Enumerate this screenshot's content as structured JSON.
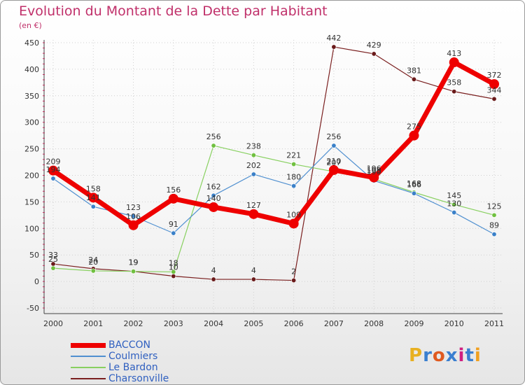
{
  "title": "Evolution du Montant de la Dette par Habitant",
  "unit": "(en €)",
  "logo": {
    "text": "Proxiti",
    "colors": [
      "#e8b020",
      "#3a7fd0",
      "#e05a20",
      "#3a7fd0",
      "#d02080",
      "#3a7fd0",
      "#f0a020"
    ]
  },
  "chart_data": {
    "type": "line",
    "title": "Evolution du Montant de la Dette par Habitant",
    "subtitle": "(en €)",
    "xlabel": "",
    "ylabel": "",
    "x": [
      "2000",
      "2001",
      "2002",
      "2003",
      "2004",
      "2005",
      "2006",
      "2007",
      "2008",
      "2009",
      "2010",
      "2011"
    ],
    "ylim": [
      -50,
      450
    ],
    "yticks": [
      -50,
      0,
      50,
      100,
      150,
      200,
      250,
      300,
      350,
      400,
      450
    ],
    "grid": "dotted",
    "legend_position": "bottom-left",
    "series": [
      {
        "name": "Charsonville",
        "color": "#7a1f1f",
        "width": 1.2,
        "marker": "#6a1a1a",
        "markerR": 3.2,
        "values": [
          33,
          24,
          19,
          10,
          4,
          4,
          2,
          442,
          429,
          381,
          358,
          344
        ],
        "labels": [
          "33",
          "24",
          "19",
          "10",
          "4",
          "4",
          "2",
          "442",
          "429",
          "381",
          "358",
          "344"
        ]
      },
      {
        "name": "Le Bardon",
        "color": "#88d060",
        "width": 1.2,
        "marker": "#70c040",
        "markerR": 3.2,
        "values": [
          25,
          20,
          19,
          18,
          256,
          238,
          221,
          207,
          193,
          168,
          145,
          125
        ],
        "labels": [
          "25",
          "20",
          "19",
          "18",
          "256",
          "238",
          "221",
          "207",
          "193",
          "168",
          "145",
          "125"
        ]
      },
      {
        "name": "Coulmiers",
        "color": "#5090d0",
        "width": 1.2,
        "marker": "#3a80c8",
        "markerR": 3.2,
        "values": [
          194,
          141,
          123,
          91,
          162,
          202,
          180,
          256,
          190,
          166,
          130,
          89
        ],
        "labels": [
          "194",
          "141",
          "123",
          "91",
          "162",
          "202",
          "180",
          "256",
          "190",
          "166",
          "130",
          "89"
        ]
      },
      {
        "name": "BACCON",
        "color": "#ee0000",
        "width": 7,
        "marker": "#ee0000",
        "markerR": 7,
        "values": [
          209,
          158,
          106,
          156,
          140,
          127,
          109,
          210,
          196,
          275,
          413,
          372
        ],
        "labels": [
          "209",
          "158",
          "106",
          "156",
          "140",
          "127",
          "109",
          "210",
          "196",
          "275",
          "413",
          "372"
        ]
      }
    ]
  },
  "legend": {
    "items": [
      {
        "label": "BACCON",
        "color": "#ee0000",
        "thickness": 7
      },
      {
        "label": "Coulmiers",
        "color": "#5090d0",
        "thickness": 1.5
      },
      {
        "label": "Le Bardon",
        "color": "#88d060",
        "thickness": 1.5
      },
      {
        "label": "Charsonville",
        "color": "#7a1f1f",
        "thickness": 1.5
      }
    ]
  }
}
